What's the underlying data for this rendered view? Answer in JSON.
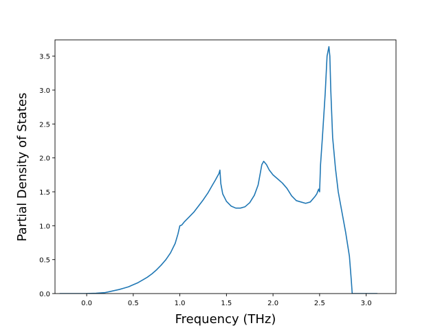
{
  "chart_data": {
    "type": "line",
    "title": "",
    "xlabel": "Frequency (THz)",
    "ylabel": "Partial Density of States",
    "xlim": [
      -0.34,
      3.32
    ],
    "ylim": [
      0.0,
      3.74
    ],
    "x_ticks": [
      0.0,
      0.5,
      1.0,
      1.5,
      2.0,
      2.5,
      3.0
    ],
    "x_tick_labels": [
      "0.0",
      "0.5",
      "1.0",
      "1.5",
      "2.0",
      "2.5",
      "3.0"
    ],
    "y_ticks": [
      0.0,
      0.5,
      1.0,
      1.5,
      2.0,
      2.5,
      3.0,
      3.5
    ],
    "y_tick_labels": [
      "0.0",
      "0.5",
      "1.0",
      "1.5",
      "2.0",
      "2.5",
      "3.0",
      "3.5"
    ],
    "grid": false,
    "legend": "none",
    "line_color": "#1f77b4",
    "series": [
      {
        "x": [
          -0.29,
          -0.2,
          -0.1,
          0.0,
          0.1,
          0.2,
          0.25,
          0.3,
          0.35,
          0.4,
          0.45,
          0.5,
          0.55,
          0.6,
          0.65,
          0.7,
          0.75,
          0.8,
          0.85,
          0.9,
          0.95,
          0.98,
          1.0,
          1.02,
          1.05,
          1.1,
          1.15,
          1.2,
          1.25,
          1.3,
          1.35,
          1.38,
          1.4,
          1.42,
          1.43,
          1.44,
          1.46,
          1.5,
          1.55,
          1.6,
          1.65,
          1.7,
          1.75,
          1.8,
          1.84,
          1.86,
          1.88,
          1.9,
          1.93,
          1.96,
          2.0,
          2.05,
          2.1,
          2.15,
          2.2,
          2.25,
          2.3,
          2.35,
          2.4,
          2.45,
          2.47,
          2.49,
          2.5,
          2.51,
          2.53,
          2.56,
          2.58,
          2.6,
          2.61,
          2.62,
          2.64,
          2.67,
          2.7,
          2.74,
          2.78,
          2.82,
          2.84,
          2.85,
          2.9,
          3.0,
          3.12
        ],
        "y": [
          0.0,
          0.0,
          0.0,
          0.0,
          0.005,
          0.015,
          0.03,
          0.045,
          0.06,
          0.08,
          0.1,
          0.13,
          0.16,
          0.2,
          0.24,
          0.29,
          0.35,
          0.42,
          0.5,
          0.6,
          0.74,
          0.88,
          1.0,
          1.01,
          1.06,
          1.13,
          1.2,
          1.29,
          1.38,
          1.48,
          1.6,
          1.67,
          1.72,
          1.77,
          1.82,
          1.62,
          1.47,
          1.36,
          1.29,
          1.26,
          1.26,
          1.28,
          1.34,
          1.45,
          1.6,
          1.75,
          1.9,
          1.95,
          1.9,
          1.82,
          1.75,
          1.69,
          1.63,
          1.55,
          1.44,
          1.37,
          1.35,
          1.33,
          1.35,
          1.43,
          1.47,
          1.54,
          1.5,
          1.9,
          2.3,
          2.95,
          3.5,
          3.64,
          3.5,
          3.0,
          2.3,
          1.85,
          1.5,
          1.2,
          0.9,
          0.55,
          0.2,
          0.0,
          0.0,
          0.0,
          0.0
        ]
      }
    ]
  }
}
